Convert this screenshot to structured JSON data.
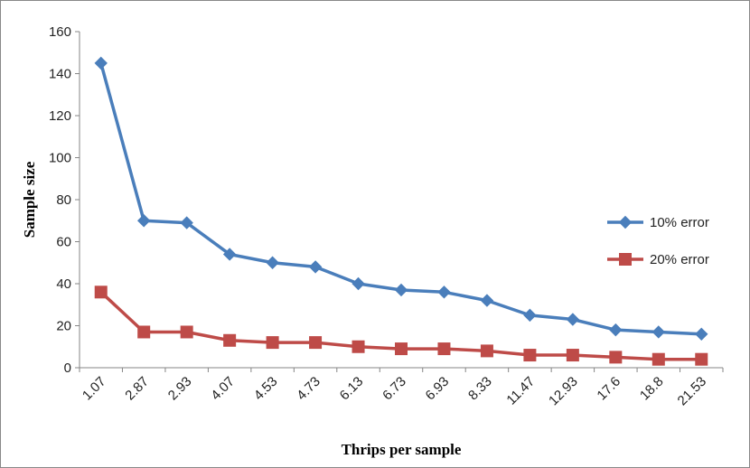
{
  "chart_data": {
    "type": "line",
    "title": "",
    "xlabel": "Thrips per sample",
    "ylabel": "Sample size",
    "categories": [
      "1.07",
      "2.87",
      "2.93",
      "4.07",
      "4.53",
      "4.73",
      "6.13",
      "6.73",
      "6.93",
      "8.33",
      "11.47",
      "12.93",
      "17.6",
      "18.8",
      "21.53"
    ],
    "ylim": [
      0,
      160
    ],
    "yticks": [
      "0",
      "20",
      "40",
      "60",
      "80",
      "100",
      "120",
      "140",
      "160"
    ],
    "grid": false,
    "legend_position": "right",
    "series": [
      {
        "name": "10% error",
        "color": "#4a7ebb",
        "marker": "diamond",
        "values": [
          145,
          70,
          69,
          54,
          50,
          48,
          40,
          37,
          36,
          32,
          25,
          23,
          18,
          17,
          16
        ]
      },
      {
        "name": "20% error",
        "color": "#be4b48",
        "marker": "square",
        "values": [
          36,
          17,
          17,
          13,
          12,
          12,
          10,
          9,
          9,
          8,
          6,
          6,
          5,
          4,
          4
        ]
      }
    ]
  }
}
